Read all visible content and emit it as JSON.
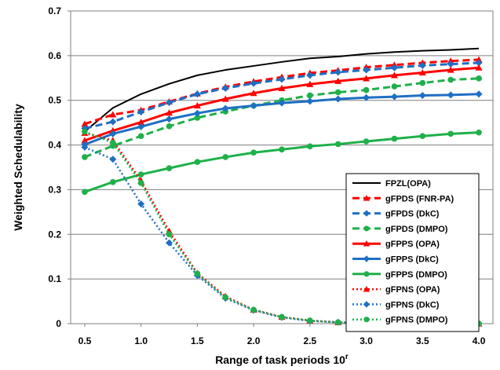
{
  "chart_data": {
    "type": "line",
    "xlabel": "Range of task periods 10",
    "xlabel_superscript": "r",
    "ylabel": "Weighted Schedulability",
    "xlim": [
      0.375,
      4.125
    ],
    "ylim": [
      0,
      0.7
    ],
    "x_ticks": [
      0.5,
      1.0,
      1.5,
      2.0,
      2.5,
      3.0,
      3.5,
      4.0
    ],
    "x_tick_labels": [
      "0.5",
      "1.0",
      "1.5",
      "2.0",
      "2.5",
      "3.0",
      "3.5",
      "4.0"
    ],
    "y_ticks": [
      0,
      0.1,
      0.2,
      0.3,
      0.4,
      0.5,
      0.6,
      0.7
    ],
    "y_tick_labels": [
      "0",
      "0.1",
      "0.2",
      "0.3",
      "0.4",
      "0.5",
      "0.6",
      "0.7"
    ],
    "grid": "horizontal",
    "legend_position": "right",
    "x": [
      0.5,
      0.75,
      1.0,
      1.25,
      1.5,
      1.75,
      2.0,
      2.25,
      2.5,
      2.75,
      3.0,
      3.25,
      3.5,
      3.75,
      4.0
    ],
    "series": [
      {
        "name": "FPZL(OPA)",
        "color": "#000000",
        "dash": "solid",
        "marker": "none",
        "width": 2,
        "values": [
          0.43,
          0.483,
          0.514,
          0.537,
          0.556,
          0.568,
          0.577,
          0.586,
          0.594,
          0.598,
          0.604,
          0.608,
          0.611,
          0.613,
          0.616
        ]
      },
      {
        "name": "gFPDS (FNR-PA)",
        "color": "#ff0000",
        "dash": "dashed",
        "marker": "triangle",
        "width": 3,
        "values": [
          0.447,
          0.468,
          0.478,
          0.497,
          0.515,
          0.53,
          0.542,
          0.552,
          0.561,
          0.567,
          0.574,
          0.579,
          0.584,
          0.588,
          0.591
        ]
      },
      {
        "name": "gFPDS (DkC)",
        "color": "#1f6fc4",
        "dash": "dashed",
        "marker": "diamond",
        "width": 3,
        "values": [
          0.437,
          0.452,
          0.474,
          0.495,
          0.514,
          0.527,
          0.538,
          0.547,
          0.556,
          0.563,
          0.568,
          0.573,
          0.578,
          0.581,
          0.584
        ]
      },
      {
        "name": "gFPDS (DMPO)",
        "color": "#1fb04a",
        "dash": "dashed",
        "marker": "circle",
        "width": 3,
        "values": [
          0.373,
          0.398,
          0.42,
          0.442,
          0.461,
          0.475,
          0.488,
          0.5,
          0.511,
          0.518,
          0.523,
          0.531,
          0.539,
          0.546,
          0.549
        ]
      },
      {
        "name": "gFPPS (OPA)",
        "color": "#ff0000",
        "dash": "solid",
        "marker": "triangle",
        "width": 3,
        "values": [
          0.41,
          0.432,
          0.451,
          0.472,
          0.488,
          0.503,
          0.516,
          0.527,
          0.536,
          0.543,
          0.549,
          0.556,
          0.562,
          0.568,
          0.573
        ]
      },
      {
        "name": "gFPPS (DkC)",
        "color": "#1f6fc4",
        "dash": "solid",
        "marker": "diamond",
        "width": 3,
        "values": [
          0.401,
          0.425,
          0.441,
          0.458,
          0.471,
          0.482,
          0.488,
          0.494,
          0.498,
          0.503,
          0.506,
          0.508,
          0.511,
          0.512,
          0.514
        ]
      },
      {
        "name": "gFPPS (DMPO)",
        "color": "#1fb04a",
        "dash": "solid",
        "marker": "circle",
        "width": 3,
        "values": [
          0.295,
          0.317,
          0.334,
          0.348,
          0.362,
          0.373,
          0.383,
          0.39,
          0.397,
          0.402,
          0.408,
          0.414,
          0.42,
          0.425,
          0.428
        ]
      },
      {
        "name": "gFPNS (OPA)",
        "color": "#ff0000",
        "dash": "dotted",
        "marker": "triangle",
        "width": 2.5,
        "values": [
          0.427,
          0.41,
          0.32,
          0.207,
          0.113,
          0.061,
          0.031,
          0.015,
          0.007,
          0.003,
          0.001,
          0.0005,
          0.0002,
          0.0001,
          0.0
        ]
      },
      {
        "name": "gFPNS (DkC)",
        "color": "#1f6fc4",
        "dash": "dotted",
        "marker": "diamond",
        "width": 2.5,
        "values": [
          0.395,
          0.368,
          0.268,
          0.181,
          0.108,
          0.057,
          0.03,
          0.014,
          0.006,
          0.003,
          0.001,
          0.0005,
          0.0002,
          0.0001,
          0.0
        ]
      },
      {
        "name": "gFPNS (DMPO)",
        "color": "#1fb04a",
        "dash": "dotted",
        "marker": "circle",
        "width": 2.5,
        "values": [
          0.43,
          0.405,
          0.315,
          0.2,
          0.112,
          0.059,
          0.031,
          0.015,
          0.007,
          0.003,
          0.001,
          0.0005,
          0.0002,
          0.0001,
          0.0
        ]
      }
    ]
  }
}
